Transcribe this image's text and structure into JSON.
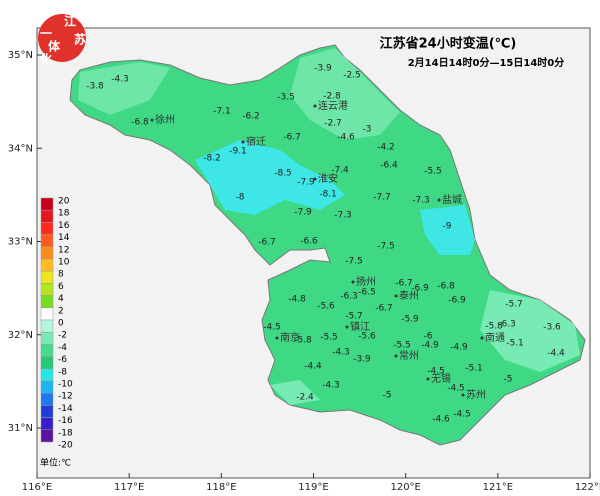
{
  "title": "江苏省24小时变温(℃)",
  "subtitle": "2月14日14时0分—15日14时0分",
  "logo": [
    "江",
    "苏",
    "一",
    "体",
    "化"
  ],
  "axes": {
    "lat_ticks": [
      {
        "value": 35,
        "label": "35°N"
      },
      {
        "value": 34,
        "label": "34°N"
      },
      {
        "value": 33,
        "label": "33°N"
      },
      {
        "value": 32,
        "label": "32°N"
      },
      {
        "value": 31,
        "label": "31°N"
      }
    ],
    "lon_ticks": [
      {
        "value": 116,
        "label": "116°E"
      },
      {
        "value": 117,
        "label": "117°E"
      },
      {
        "value": 118,
        "label": "118°E"
      },
      {
        "value": 119,
        "label": "119°E"
      },
      {
        "value": 120,
        "label": "120°E"
      },
      {
        "value": 121,
        "label": "121°E"
      },
      {
        "value": 122,
        "label": "122°E"
      }
    ]
  },
  "legend": {
    "unit": "单位:℃",
    "levels": [
      20,
      18,
      16,
      14,
      12,
      10,
      8,
      6,
      4,
      2,
      0,
      -2,
      -4,
      -6,
      -8,
      -10,
      -12,
      -14,
      -16,
      -18,
      -20
    ],
    "colors": [
      "#c8001e",
      "#e8141e",
      "#ff2a1e",
      "#ff5a1e",
      "#ff8c1e",
      "#ffbe1e",
      "#f0e61e",
      "#b4e61e",
      "#78dc1e",
      "#ffffff",
      "#b4f5dc",
      "#78ebb4",
      "#46dc8c",
      "#28c878",
      "#28e6e6",
      "#1eb4f0",
      "#1e78f0",
      "#1e3cdc",
      "#3c1ec8",
      "#5a14a0"
    ]
  },
  "cities": [
    "徐州",
    "连云港",
    "宿迁",
    "淮安",
    "盐城",
    "扬州",
    "泰州",
    "南京",
    "镇江",
    "常州",
    "南通",
    "无锡",
    "苏州"
  ],
  "stations": [
    -3.8,
    -4.3,
    -6.8,
    -7.1,
    -6.2,
    -3.5,
    -3.9,
    -2.5,
    -2.8,
    -2.7,
    -3.0,
    -4.6,
    -6.7,
    -4.2,
    -9.1,
    -8.2,
    -7.4,
    -6.4,
    -5.5,
    -8.5,
    -7.9,
    -8.1,
    -8.0,
    -7.7,
    -7.3,
    -7.9,
    -7.3,
    -9.0,
    -6.7,
    -6.6,
    -7.5,
    -7.5,
    -6.7,
    -6.9,
    -6.8,
    -6.3,
    -6.5,
    -6.9,
    -4.8,
    -5.6,
    -6.7,
    -5.7,
    -5.7,
    -5.9,
    -3.6,
    -4.5,
    -5.8,
    -6.3,
    -5.6,
    -6.0,
    -5.1,
    -5.8,
    -5.5,
    -4.3,
    -5.5,
    -4.9,
    -4.9,
    -4.4,
    -3.9,
    -4.4,
    -4.5,
    -5.1,
    -5.0,
    -4.3,
    -4.5,
    -5.0,
    -2.4,
    -4.5,
    -4.6
  ]
}
